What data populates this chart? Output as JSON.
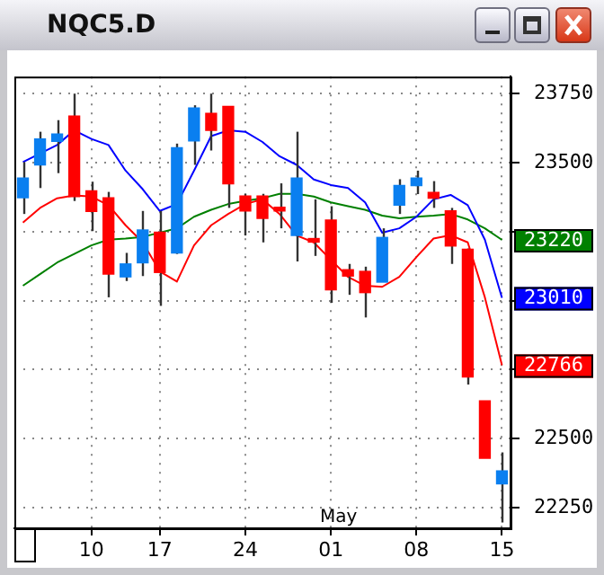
{
  "chart_data": {
    "type": "candlestick",
    "title": "NQC5.D",
    "categories": [
      null,
      null,
      null,
      null,
      "10",
      null,
      null,
      null,
      "17",
      null,
      null,
      null,
      null,
      "24",
      null,
      null,
      null,
      null,
      "01",
      null,
      null,
      null,
      null,
      "08",
      null,
      null,
      null,
      null,
      "15"
    ],
    "ohlc": [
      [
        23373,
        23502,
        23314,
        23444
      ],
      [
        23492,
        23612,
        23408,
        23586
      ],
      [
        23577,
        23654,
        23462,
        23604
      ],
      [
        23669,
        23750,
        23361,
        23377
      ],
      [
        23398,
        23431,
        23252,
        23323
      ],
      [
        23373,
        23394,
        23012,
        23096
      ],
      [
        23086,
        23173,
        23071,
        23133
      ],
      [
        23137,
        23325,
        23089,
        23256
      ],
      [
        23248,
        23325,
        22981,
        23102
      ],
      [
        23173,
        23569,
        23169,
        23554
      ],
      [
        23579,
        23708,
        23492,
        23698
      ],
      [
        23679,
        23750,
        23544,
        23617
      ],
      [
        23704,
        23704,
        23336,
        23423
      ],
      [
        23379,
        23387,
        23236,
        23325
      ],
      [
        23379,
        23387,
        23211,
        23298
      ],
      [
        23331,
        23425,
        23262,
        23325
      ],
      [
        23236,
        23612,
        23142,
        23444
      ],
      [
        23225,
        23367,
        23162,
        23212
      ],
      [
        23292,
        23342,
        22992,
        23039
      ],
      [
        23112,
        23133,
        23021,
        23089
      ],
      [
        23106,
        23123,
        22939,
        23029
      ],
      [
        23067,
        23262,
        23067,
        23229
      ],
      [
        23346,
        23440,
        23314,
        23417
      ],
      [
        23417,
        23471,
        23386,
        23444
      ],
      [
        23392,
        23433,
        23336,
        23371
      ],
      [
        23325,
        23336,
        23133,
        23198
      ],
      [
        23186,
        23189,
        22696,
        22723
      ],
      [
        22637,
        22637,
        22429,
        22429
      ],
      [
        22336,
        22450,
        22196,
        22383
      ]
    ],
    "colors": [
      "#0a7ff0",
      "#0a7ff0",
      "#0a7ff0",
      "#ff0000",
      "#ff0000",
      "#ff0000",
      "#0a7ff0",
      "#0a7ff0",
      "#ff0000",
      "#0a7ff0",
      "#0a7ff0",
      "#ff0000",
      "#ff0000",
      "#ff0000",
      "#ff0000",
      "#ff0000",
      "#0a7ff0",
      "#ff0000",
      "#ff0000",
      "#ff0000",
      "#ff0000",
      "#0a7ff0",
      "#0a7ff0",
      "#0a7ff0",
      "#ff0000",
      "#ff0000",
      "#ff0000",
      "#ff0000",
      "#0a7ff0"
    ],
    "series": [
      {
        "type": "line",
        "color": "#0000ff",
        "values": [
          23502,
          23533,
          23564,
          23617,
          23586,
          23564,
          23471,
          23404,
          23325,
          23350,
          23471,
          23596,
          23617,
          23612,
          23575,
          23523,
          23492,
          23439,
          23419,
          23408,
          23356,
          23246,
          23262,
          23304,
          23367,
          23383,
          23346,
          23221,
          23010
        ],
        "value_labels": [
          null,
          null,
          null,
          null,
          null,
          null,
          null,
          null,
          null,
          null,
          null,
          null,
          null,
          null,
          null,
          null,
          null,
          null,
          null,
          null,
          null,
          null,
          null,
          null,
          null,
          null,
          null,
          null,
          "23010"
        ]
      },
      {
        "type": "line",
        "color": "#ff0000",
        "values": [
          23283,
          23336,
          23371,
          23381,
          23377,
          23346,
          23273,
          23211,
          23106,
          23069,
          23200,
          23273,
          23314,
          23350,
          23367,
          23314,
          23236,
          23211,
          23148,
          23086,
          23054,
          23050,
          23086,
          23158,
          23225,
          23237,
          23211,
          23012,
          22766
        ],
        "value_labels": [
          null,
          null,
          null,
          null,
          null,
          null,
          null,
          null,
          null,
          null,
          null,
          null,
          null,
          null,
          null,
          null,
          null,
          null,
          null,
          null,
          null,
          null,
          null,
          null,
          null,
          null,
          null,
          null,
          "22766"
        ]
      },
      {
        "type": "line",
        "color": "#008000",
        "values": [
          23054,
          23096,
          23138,
          23169,
          23200,
          23221,
          23225,
          23231,
          23246,
          23262,
          23304,
          23329,
          23350,
          23362,
          23371,
          23387,
          23387,
          23377,
          23356,
          23342,
          23329,
          23308,
          23298,
          23304,
          23308,
          23314,
          23294,
          23262,
          23220
        ],
        "value_labels": [
          null,
          null,
          null,
          null,
          null,
          null,
          null,
          null,
          null,
          null,
          null,
          null,
          null,
          null,
          null,
          null,
          null,
          null,
          null,
          null,
          null,
          null,
          null,
          null,
          null,
          null,
          null,
          null,
          "23220"
        ]
      }
    ],
    "ylim": [
      22175,
      23812
    ],
    "yticks": [
      22250,
      22500,
      {
        "value": 22750,
        "label": null
      },
      {
        "value": 23000,
        "label": null
      },
      {
        "value": 23250,
        "label": null
      },
      23500,
      23750
    ],
    "annotations": [
      "May"
    ],
    "grid": true,
    "legend": false,
    "marker": "none"
  }
}
